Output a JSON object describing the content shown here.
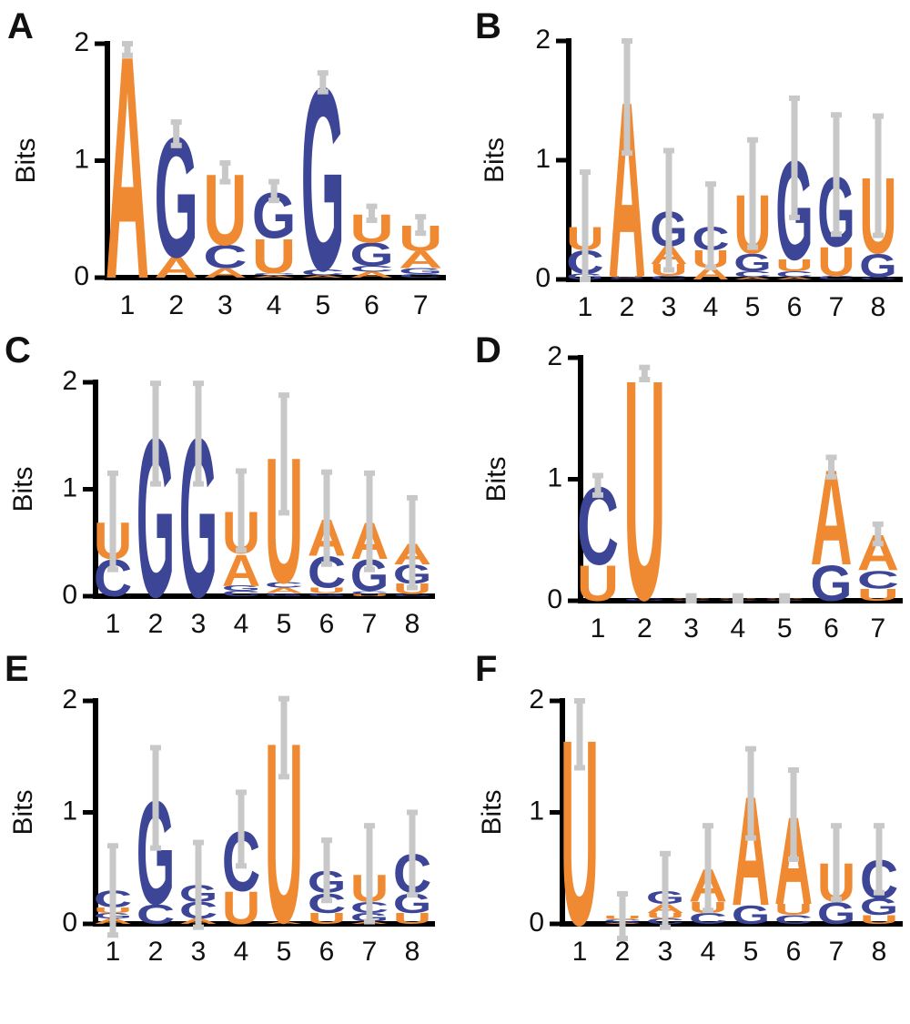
{
  "chart_data": [
    {
      "type": "logo",
      "panel": "A",
      "ylabel": "Bits",
      "categories": [
        "1",
        "2",
        "3",
        "4",
        "5",
        "6",
        "7"
      ],
      "ylim": [
        0,
        2
      ],
      "yticks": [
        0,
        1,
        2
      ],
      "series": [
        {
          "name": "A",
          "color": "#f08a32",
          "values": [
            1.95,
            0.18,
            0.08,
            0.02,
            0.02,
            0.05,
            0.15
          ]
        },
        {
          "name": "C",
          "color": "#3c4596",
          "values": [
            0.0,
            0.0,
            0.2,
            0.02,
            0.05,
            0.05,
            0.03
          ]
        },
        {
          "name": "G",
          "color": "#3c4596",
          "values": [
            0.0,
            1.05,
            0.0,
            0.4,
            1.6,
            0.2,
            0.05
          ]
        },
        {
          "name": "U",
          "color": "#f08a32",
          "values": [
            0.0,
            0.0,
            0.62,
            0.3,
            0.0,
            0.25,
            0.22
          ]
        }
      ],
      "errors": [
        0.05,
        0.1,
        0.08,
        0.08,
        0.08,
        0.06,
        0.07
      ]
    },
    {
      "type": "logo",
      "panel": "B",
      "ylabel": "Bits",
      "categories": [
        "1",
        "2",
        "3",
        "4",
        "5",
        "6",
        "7",
        "8"
      ],
      "ylim": [
        0,
        2
      ],
      "yticks": [
        0,
        1,
        2
      ],
      "series": [
        {
          "name": "A",
          "color": "#f08a32",
          "values": [
            0.0,
            1.5,
            0.15,
            0.1,
            0.02,
            0.02,
            0.0,
            0.0
          ]
        },
        {
          "name": "C",
          "color": "#3c4596",
          "values": [
            0.2,
            0.01,
            0.03,
            0.2,
            0.05,
            0.05,
            0.03,
            0.02
          ]
        },
        {
          "name": "G",
          "color": "#3c4596",
          "values": [
            0.05,
            0.01,
            0.3,
            0.0,
            0.15,
            0.85,
            0.6,
            0.2
          ]
        },
        {
          "name": "U",
          "color": "#f08a32",
          "values": [
            0.2,
            0.01,
            0.1,
            0.15,
            0.5,
            0.1,
            0.25,
            0.65
          ]
        }
      ],
      "errors": [
        0.45,
        0.47,
        0.5,
        0.35,
        0.45,
        0.5,
        0.5,
        0.5
      ]
    },
    {
      "type": "logo",
      "panel": "C",
      "ylabel": "Bits",
      "categories": [
        "1",
        "2",
        "3",
        "4",
        "5",
        "6",
        "7",
        "8"
      ],
      "ylim": [
        0,
        2
      ],
      "yticks": [
        0,
        1,
        2
      ],
      "series": [
        {
          "name": "A",
          "color": "#f08a32",
          "values": [
            0.0,
            0.0,
            0.0,
            0.3,
            0.05,
            0.35,
            0.35,
            0.2
          ]
        },
        {
          "name": "C",
          "color": "#3c4596",
          "values": [
            0.35,
            0.0,
            0.0,
            0.05,
            0.05,
            0.3,
            0.03,
            0.02
          ]
        },
        {
          "name": "G",
          "color": "#3c4596",
          "values": [
            0.0,
            1.52,
            1.52,
            0.05,
            0.03,
            0.03,
            0.3,
            0.18
          ]
        },
        {
          "name": "U",
          "color": "#f08a32",
          "values": [
            0.35,
            0.0,
            0.0,
            0.4,
            1.2,
            0.05,
            0.02,
            0.1
          ]
        }
      ],
      "errors": [
        0.45,
        0.47,
        0.47,
        0.37,
        0.55,
        0.43,
        0.45,
        0.42
      ]
    },
    {
      "type": "logo",
      "panel": "D",
      "ylabel": "Bits",
      "categories": [
        "1",
        "2",
        "3",
        "4",
        "5",
        "6",
        "7"
      ],
      "ylim": [
        0,
        2
      ],
      "yticks": [
        0,
        1,
        2
      ],
      "series": [
        {
          "name": "A",
          "color": "#f08a32",
          "values": [
            0.0,
            0.0,
            0.005,
            0.005,
            0.005,
            0.8,
            0.3
          ]
        },
        {
          "name": "C",
          "color": "#3c4596",
          "values": [
            0.65,
            0.02,
            0.005,
            0.005,
            0.005,
            0.0,
            0.15
          ]
        },
        {
          "name": "G",
          "color": "#3c4596",
          "values": [
            0.0,
            0.0,
            0.005,
            0.005,
            0.005,
            0.3,
            0.0
          ]
        },
        {
          "name": "U",
          "color": "#f08a32",
          "values": [
            0.3,
            1.85,
            0.005,
            0.005,
            0.005,
            0.0,
            0.1
          ]
        }
      ],
      "errors": [
        0.08,
        0.05,
        0.02,
        0.02,
        0.02,
        0.08,
        0.08
      ]
    },
    {
      "type": "logo",
      "panel": "E",
      "ylabel": "Bits",
      "categories": [
        "1",
        "2",
        "3",
        "4",
        "5",
        "6",
        "7",
        "8"
      ],
      "ylim": [
        0,
        2
      ],
      "yticks": [
        0,
        1,
        2
      ],
      "series": [
        {
          "name": "A",
          "color": "#f08a32",
          "values": [
            0.05,
            0.0,
            0.05,
            0.0,
            0.02,
            0.0,
            0.02,
            0.0
          ]
        },
        {
          "name": "C",
          "color": "#3c4596",
          "values": [
            0.15,
            0.18,
            0.15,
            0.55,
            0.0,
            0.18,
            0.1,
            0.35
          ]
        },
        {
          "name": "G",
          "color": "#3c4596",
          "values": [
            0.05,
            0.95,
            0.15,
            0.0,
            0.0,
            0.2,
            0.08,
            0.18
          ]
        },
        {
          "name": "U",
          "color": "#f08a32",
          "values": [
            0.05,
            0.0,
            0.0,
            0.3,
            1.65,
            0.1,
            0.25,
            0.1
          ]
        }
      ],
      "errors": [
        0.4,
        0.45,
        0.38,
        0.33,
        0.35,
        0.27,
        0.43,
        0.37
      ]
    },
    {
      "type": "logo",
      "panel": "F",
      "ylabel": "Bits",
      "categories": [
        "1",
        "2",
        "3",
        "4",
        "5",
        "6",
        "7",
        "8"
      ],
      "ylim": [
        0,
        2
      ],
      "yticks": [
        0,
        1,
        2
      ],
      "series": [
        {
          "name": "A",
          "color": "#f08a32",
          "values": [
            0.0,
            0.01,
            0.08,
            0.3,
            1.0,
            0.8,
            0.0,
            0.0
          ]
        },
        {
          "name": "C",
          "color": "#3c4596",
          "values": [
            0.0,
            0.02,
            0.05,
            0.1,
            0.0,
            0.08,
            0.0,
            0.35
          ]
        },
        {
          "name": "G",
          "color": "#3c4596",
          "values": [
            0.0,
            0.01,
            0.12,
            0.0,
            0.17,
            0.0,
            0.2,
            0.15
          ]
        },
        {
          "name": "U",
          "color": "#f08a32",
          "values": [
            1.7,
            0.03,
            0.05,
            0.1,
            0.0,
            0.1,
            0.35,
            0.08
          ]
        }
      ],
      "errors": [
        0.3,
        0.2,
        0.33,
        0.38,
        0.4,
        0.4,
        0.33,
        0.3
      ]
    }
  ]
}
